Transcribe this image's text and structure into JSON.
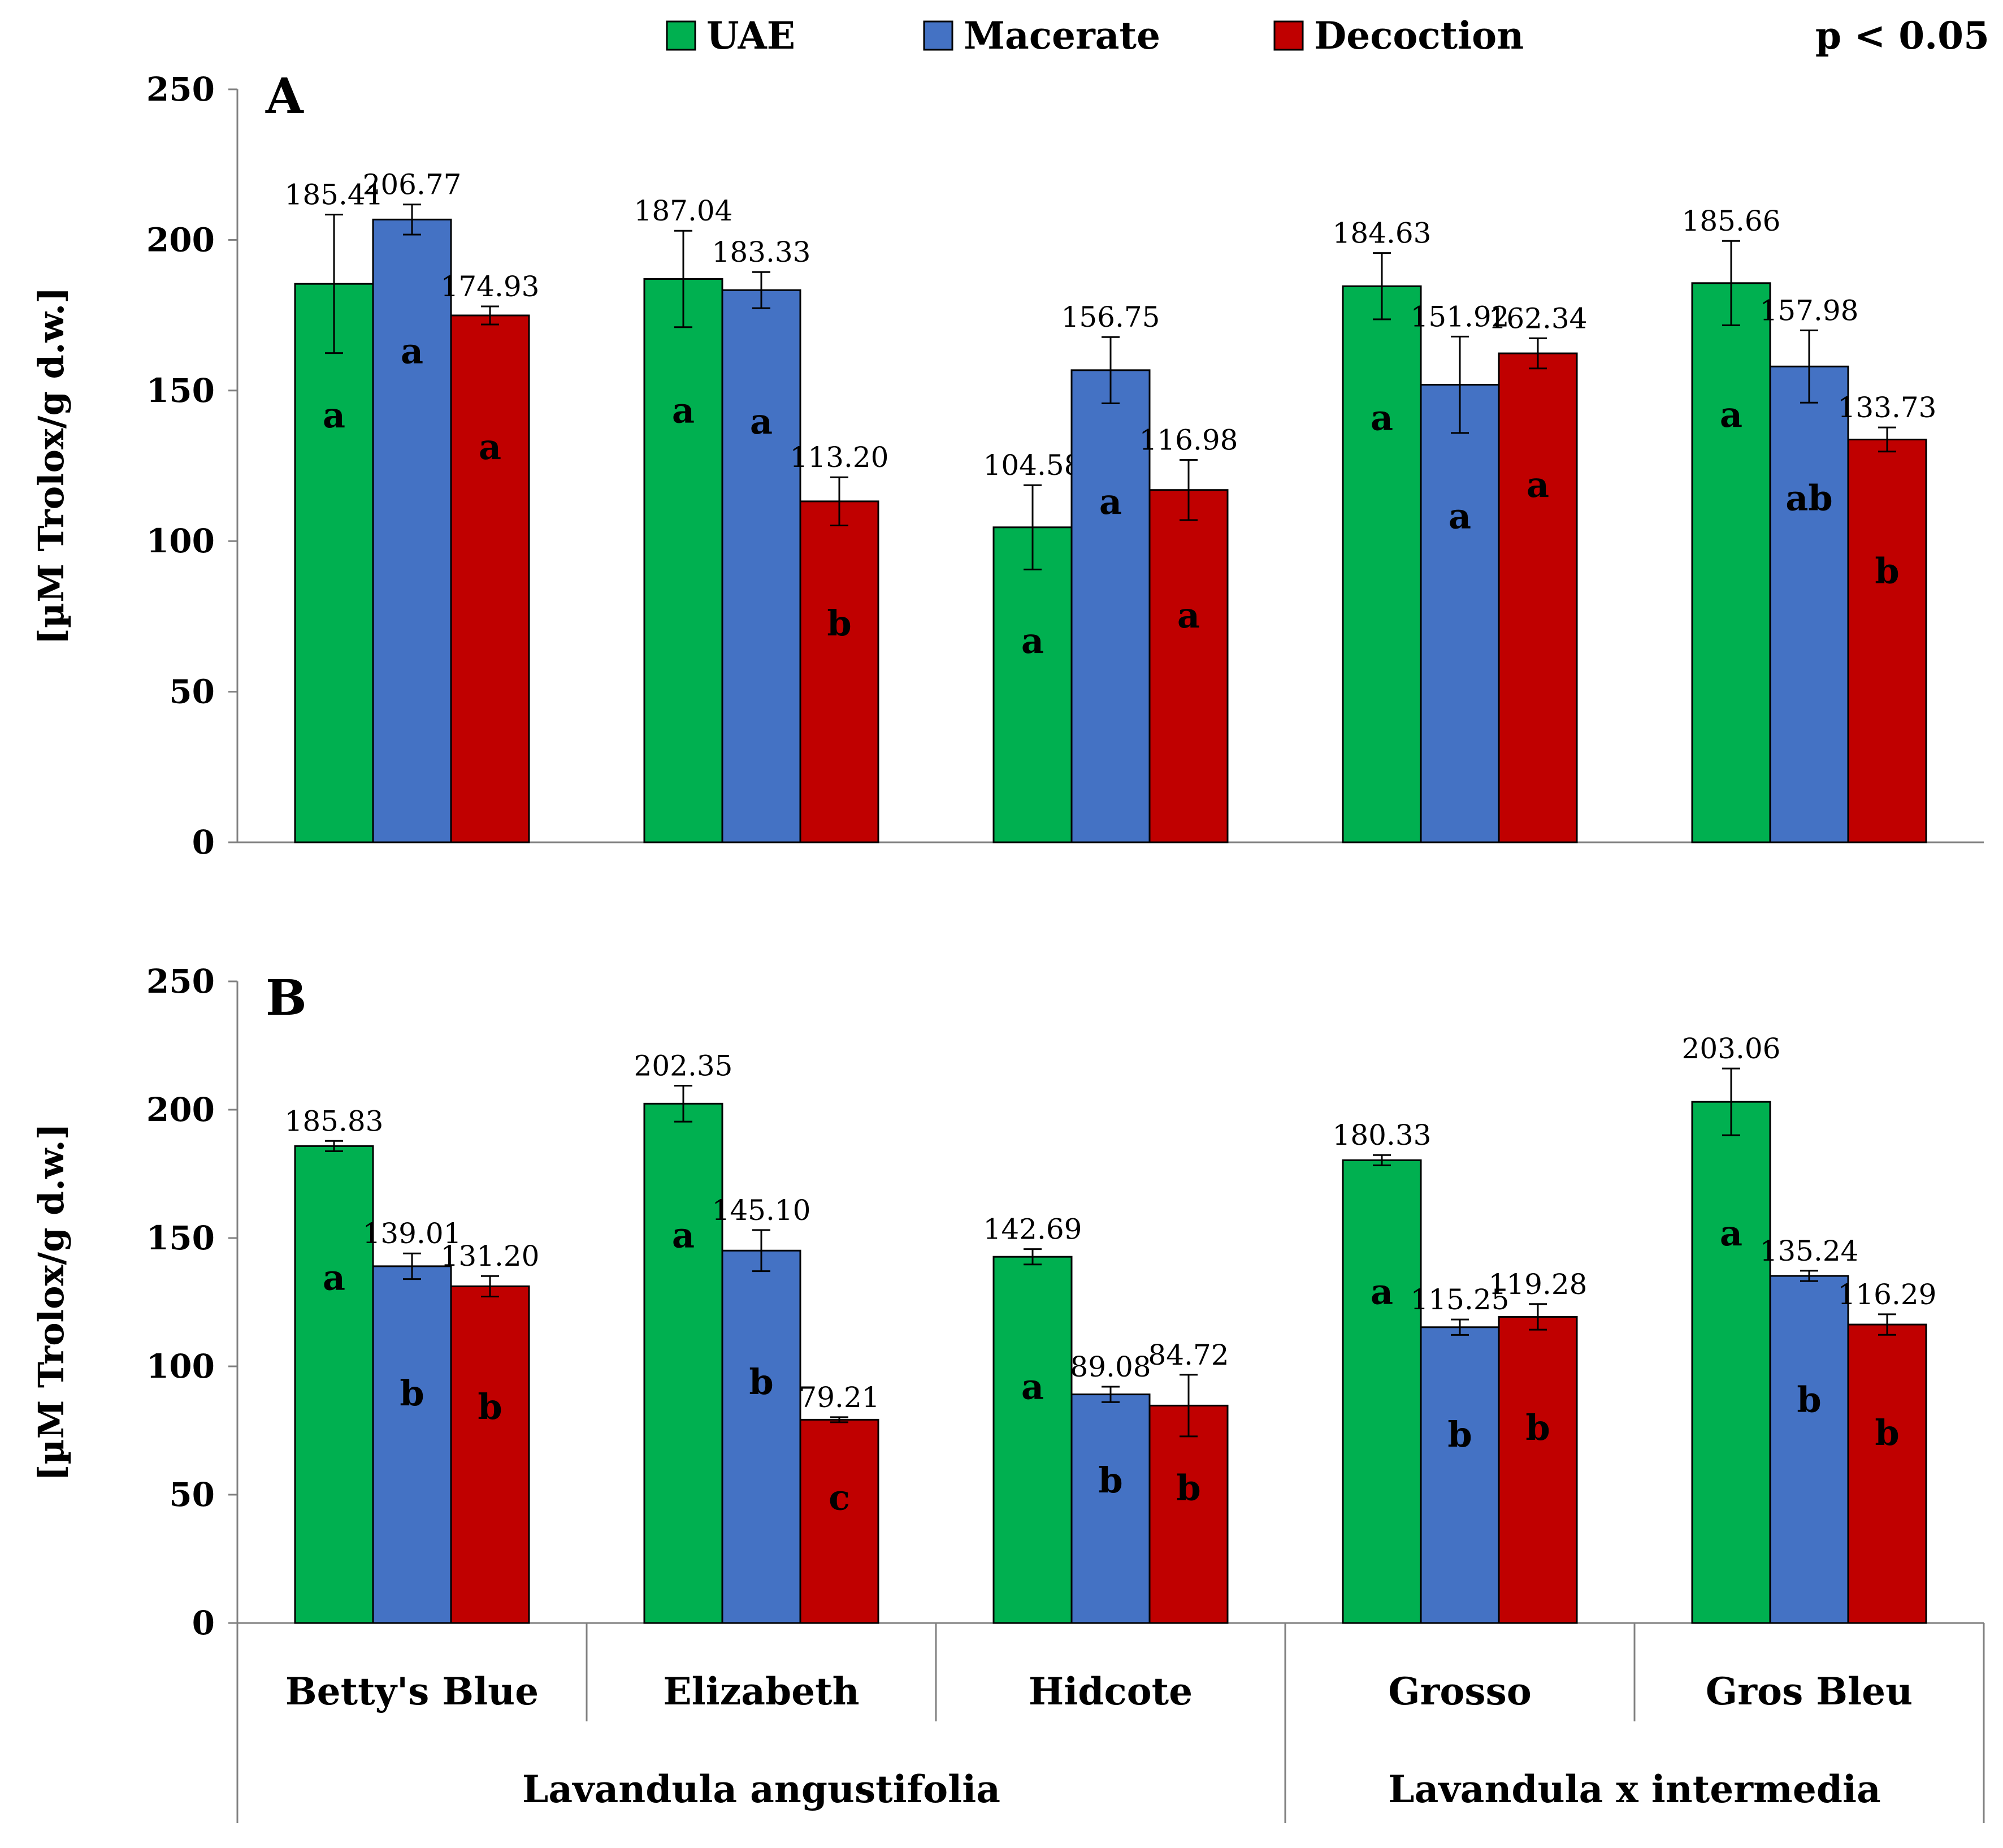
{
  "chart_data": {
    "type": "bar",
    "legend": {
      "position": "top",
      "significance_note": "p < 0.05"
    },
    "series_names": [
      "UAE",
      "Macerate",
      "Decoction"
    ],
    "colors": {
      "UAE": "#00b050",
      "Macerate": "#4472c4",
      "Decoction": "#c00000"
    },
    "categories": [
      "Betty's Blue",
      "Elizabeth",
      "Hidcote",
      "Grosso",
      "Gros Bleu"
    ],
    "groups": [
      {
        "label": "Lavandula angustifolia",
        "span": [
          0,
          2
        ]
      },
      {
        "label": "Lavandula x intermedia",
        "span": [
          3,
          4
        ]
      }
    ],
    "ylabel": "[µM Trolox/g d.w.]",
    "ylim": [
      0,
      250
    ],
    "yticks": [
      0,
      50,
      100,
      150,
      200,
      250
    ],
    "panels": [
      {
        "label": "A",
        "series": [
          {
            "name": "UAE",
            "values": [
              185.41,
              187.04,
              104.58,
              184.63,
              185.66
            ],
            "errors": [
              23,
              16,
              14,
              11,
              14
            ],
            "value_labels": [
              "185.41",
              "187.04",
              "104.58",
              "184.63",
              "185.66"
            ],
            "letters": [
              "a",
              "a",
              "a",
              "a",
              "a"
            ]
          },
          {
            "name": "Macerate",
            "values": [
              206.77,
              183.33,
              156.75,
              151.92,
              157.98
            ],
            "errors": [
              5,
              6,
              11,
              16,
              12
            ],
            "value_labels": [
              "206.77",
              "183.33",
              "156.75",
              "151.92",
              "157.98"
            ],
            "letters": [
              "a",
              "a",
              "a",
              "a",
              "ab"
            ]
          },
          {
            "name": "Decoction",
            "values": [
              174.93,
              113.2,
              116.98,
              162.34,
              133.73
            ],
            "errors": [
              3,
              8,
              10,
              5,
              4
            ],
            "value_labels": [
              "174.93",
              "113.20",
              "116.98",
              "162.34",
              "133.73"
            ],
            "letters": [
              "a",
              "b",
              "a",
              "a",
              "b"
            ]
          }
        ]
      },
      {
        "label": "B",
        "series": [
          {
            "name": "UAE",
            "values": [
              185.83,
              202.35,
              142.69,
              180.33,
              203.06
            ],
            "errors": [
              2,
              7,
              3,
              2,
              13
            ],
            "value_labels": [
              "185.83",
              "202.35",
              "142.69",
              "180.33",
              "203.06"
            ],
            "letters": [
              "a",
              "a",
              "a",
              "a",
              "a"
            ]
          },
          {
            "name": "Macerate",
            "values": [
              139.01,
              145.1,
              89.08,
              115.25,
              135.24
            ],
            "errors": [
              5,
              8,
              3,
              3,
              2
            ],
            "value_labels": [
              "139.01",
              "145.10",
              "89.08",
              "115.25",
              "135.24"
            ],
            "letters": [
              "b",
              "b",
              "b",
              "b",
              "b"
            ]
          },
          {
            "name": "Decoction",
            "values": [
              131.2,
              79.21,
              84.72,
              119.28,
              116.29
            ],
            "errors": [
              4,
              1,
              12,
              5,
              4
            ],
            "value_labels": [
              "131.20",
              "79.21",
              "84.72",
              "119.28",
              "116.29"
            ],
            "letters": [
              "b",
              "c",
              "b",
              "b",
              "b"
            ]
          }
        ]
      }
    ]
  }
}
